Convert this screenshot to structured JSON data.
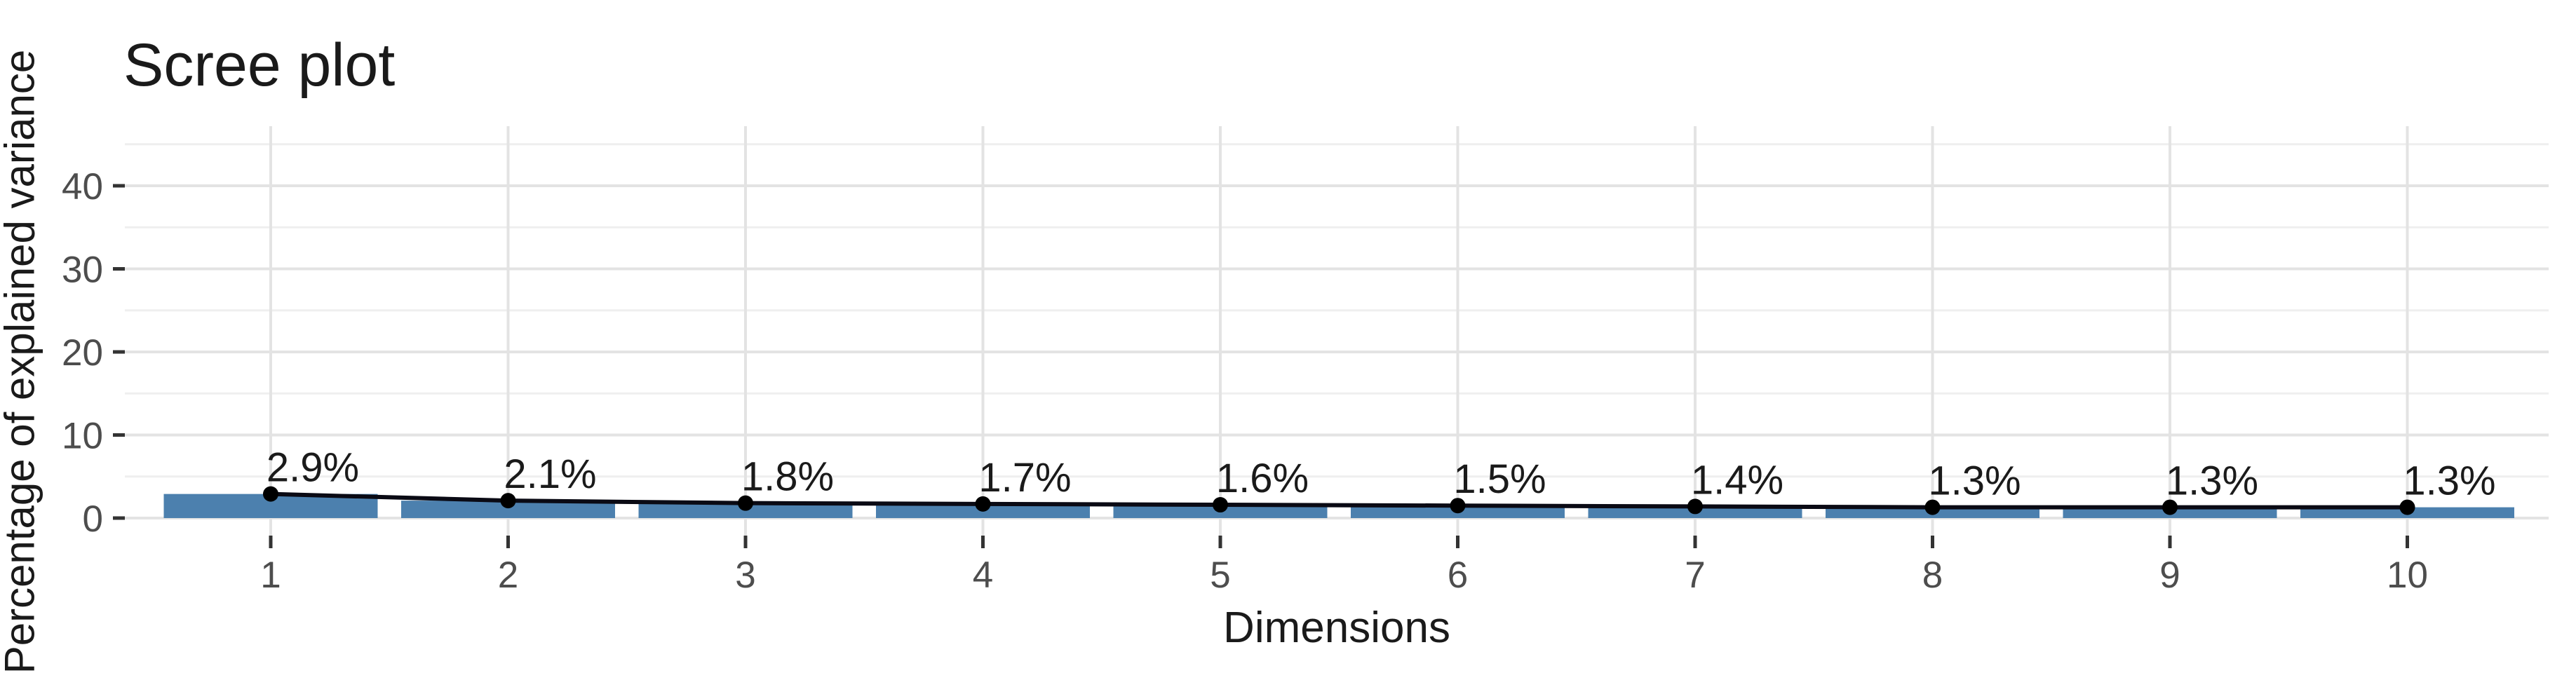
{
  "chart_data": {
    "type": "bar",
    "overlay": "line+points",
    "title": "Scree plot",
    "xlabel": "Dimensions",
    "ylabel": "Percentage of explained variance",
    "categories": [
      "1",
      "2",
      "3",
      "4",
      "5",
      "6",
      "7",
      "8",
      "9",
      "10"
    ],
    "values": [
      2.9,
      2.1,
      1.8,
      1.7,
      1.6,
      1.5,
      1.4,
      1.3,
      1.3,
      1.3
    ],
    "point_labels": [
      "2.9%",
      "2.1%",
      "1.8%",
      "1.7%",
      "1.6%",
      "1.5%",
      "1.4%",
      "1.3%",
      "1.3%",
      "1.3%"
    ],
    "y_tick_labels": [
      "0",
      "10",
      "20",
      "30",
      "40"
    ],
    "y_major_ticks": [
      0,
      10,
      20,
      30,
      40
    ],
    "y_minor_ticks": [
      5,
      15,
      25,
      35,
      45
    ],
    "ylim": [
      0,
      47.2
    ],
    "grid": "major+minor horizontal, major vertical",
    "legend_position": "none",
    "colors": {
      "bar_fill": "#4C80AE",
      "line": "#0A0A14",
      "point": "#000000",
      "grid_major": "#E3E3E3",
      "grid_minor": "#EFEFEF",
      "axis_text": "#4D4D4D",
      "tick_mark": "#333333",
      "text": "#1A1A1A",
      "background": "#FFFFFF"
    }
  }
}
